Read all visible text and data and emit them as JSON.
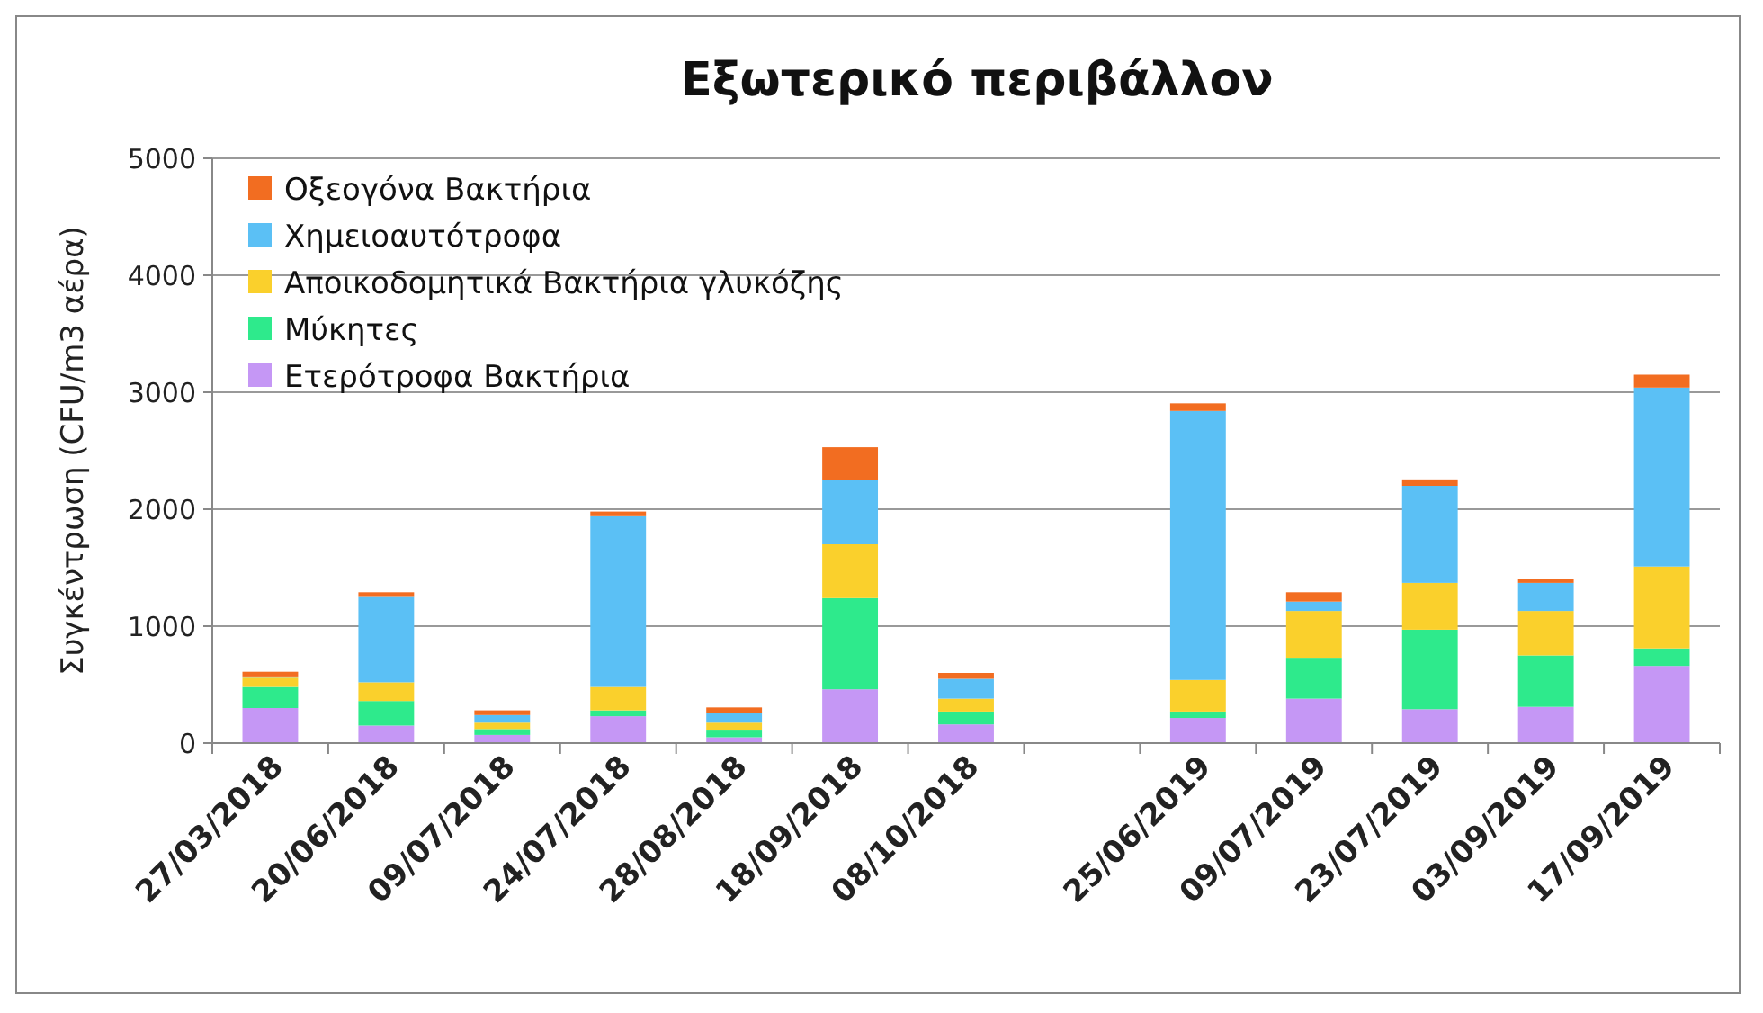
{
  "chart_data": {
    "type": "bar",
    "title": "Εξωτερικό περιβάλλον",
    "ylabel": "Συγκέντρωση (CFU/m3 αέρα)",
    "stacked": true,
    "grid": "y",
    "legend": "top left",
    "categories": [
      "27/03/2018",
      "20/06/2018",
      "09/07/2018",
      "24/07/2018",
      "28/08/2018",
      "18/09/2018",
      "08/10/2018",
      null,
      "25/06/2019",
      "09/07/2019",
      "23/07/2019",
      "03/09/2019",
      "17/09/2019"
    ],
    "ylim": [
      0,
      5000
    ],
    "yticks": [
      0,
      1000,
      2000,
      3000,
      4000,
      5000
    ],
    "series": [
      {
        "name": "Ετερότροφα Βακτήρια",
        "color": "#c597f5",
        "values": [
          300,
          150,
          70,
          230,
          50,
          460,
          160,
          null,
          215,
          380,
          290,
          310,
          660
        ]
      },
      {
        "name": "Μύκητες",
        "color": "#2eea8c",
        "values": [
          180,
          210,
          50,
          50,
          65,
          780,
          110,
          null,
          55,
          350,
          680,
          440,
          150
        ]
      },
      {
        "name": "Αποικοδομητικά Βακτήρια γλυκόζης",
        "color": "#fad02c",
        "values": [
          80,
          160,
          55,
          200,
          60,
          460,
          110,
          null,
          270,
          400,
          400,
          380,
          700
        ]
      },
      {
        "name": "Χημειοαυτότροφα",
        "color": "#5bc0f5",
        "values": [
          10,
          730,
          65,
          1460,
          80,
          550,
          170,
          null,
          2300,
          80,
          830,
          240,
          1530
        ]
      },
      {
        "name": "Οξεογόνα Βακτήρια",
        "color": "#f26d21",
        "values": [
          40,
          40,
          40,
          40,
          50,
          280,
          50,
          null,
          65,
          80,
          55,
          30,
          110
        ]
      }
    ]
  }
}
